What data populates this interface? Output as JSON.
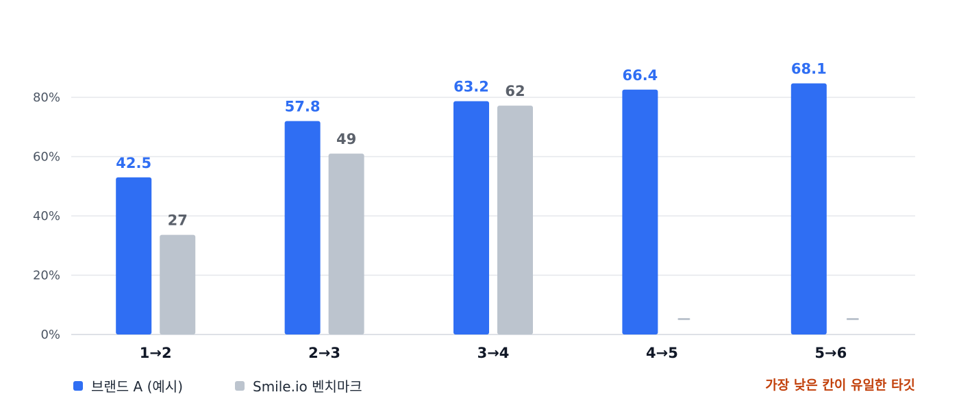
{
  "chart_data": {
    "type": "bar",
    "categories": [
      "1→2",
      "2→3",
      "3→4",
      "4→5",
      "5→6"
    ],
    "series": [
      {
        "name": "브랜드 A (예시)",
        "color": "#2f6ef3",
        "values": [
          53,
          72,
          78.7,
          82.6,
          84.7
        ],
        "data_labels": [
          "42.5",
          "57.8",
          "63.2",
          "66.4",
          "68.1"
        ]
      },
      {
        "name": "Smile.io 벤치마크",
        "color": "#bcc4ce",
        "values": [
          33.6,
          61,
          77.2,
          null,
          null
        ],
        "data_labels": [
          "27",
          "49",
          "62",
          "",
          ""
        ]
      }
    ],
    "y_ticks": [
      "0%",
      "20%",
      "40%",
      "60%",
      "80%"
    ],
    "ylim": [
      0,
      80
    ],
    "grid": true,
    "legend_position": "bottom-left",
    "title": "",
    "xlabel": "",
    "ylabel": ""
  },
  "annotation": "가장 낮은 칸이 유일한 타깃"
}
